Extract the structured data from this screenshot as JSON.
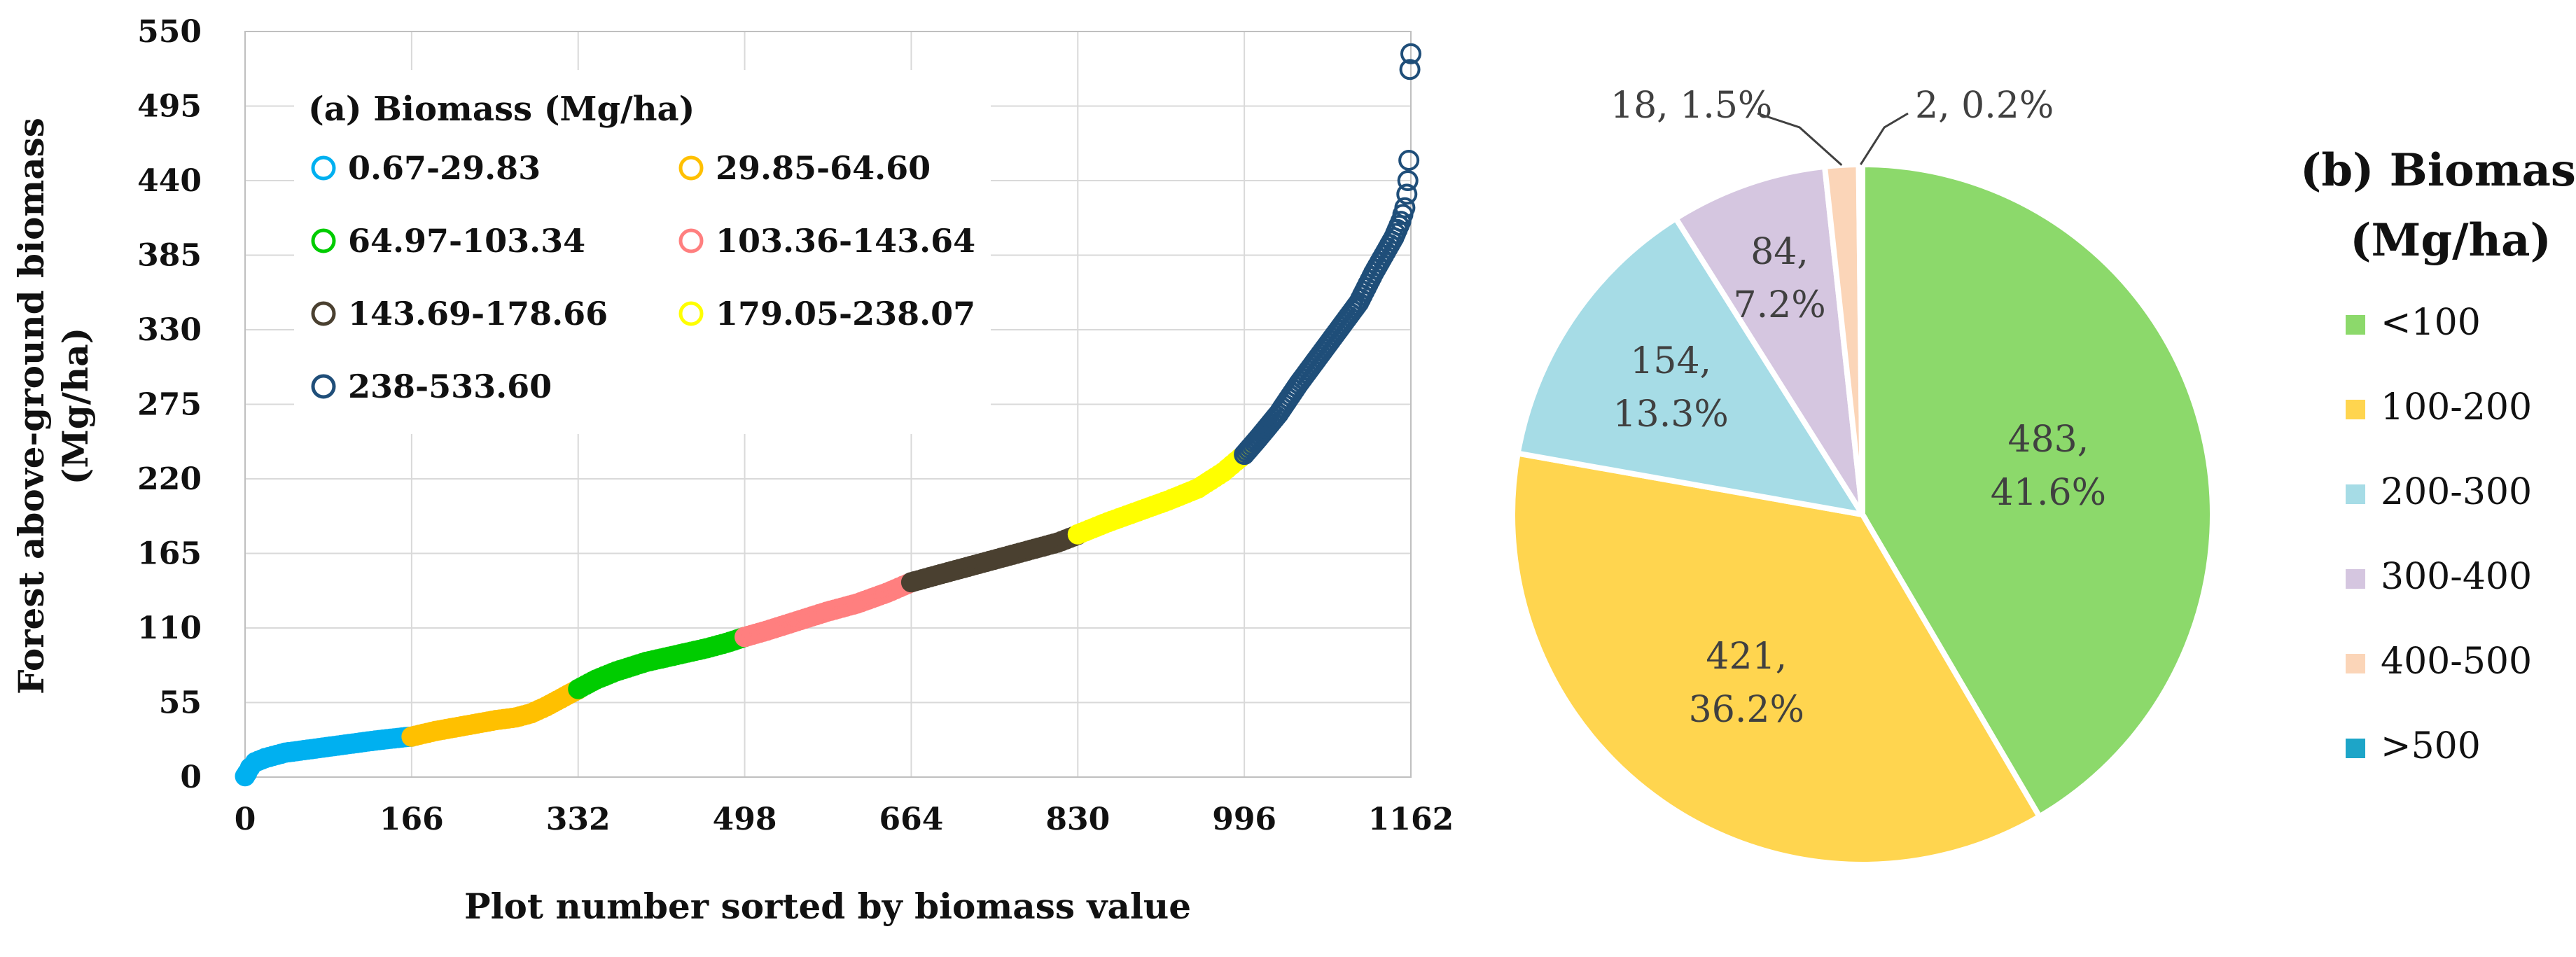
{
  "chart_data": [
    {
      "type": "scatter",
      "panel": "a",
      "title": "",
      "xlabel": "Plot number sorted by biomass value",
      "ylabel_line1": "Forest above-ground biomass",
      "ylabel_line2": "(Mg/ha)",
      "xlim": [
        0,
        1162
      ],
      "ylim": [
        0,
        550
      ],
      "x_ticks": [
        "0",
        "166",
        "332",
        "498",
        "664",
        "830",
        "996",
        "1162"
      ],
      "x_tick_values": [
        0,
        166,
        332,
        498,
        664,
        830,
        996,
        1162
      ],
      "y_ticks": [
        "0",
        "55",
        "110",
        "165",
        "220",
        "275",
        "330",
        "385",
        "440",
        "495",
        "550"
      ],
      "y_tick_values": [
        0,
        55,
        110,
        165,
        220,
        275,
        330,
        385,
        440,
        495,
        550
      ],
      "grid": true,
      "legend_title": "(a) Biomass (Mg/ha)",
      "legend_position": "top-left",
      "series": [
        {
          "name": "0.67-29.83",
          "color": "#00B0F0",
          "x": [
            0,
            2,
            5,
            10,
            20,
            40,
            70,
            100,
            130,
            160,
            166
          ],
          "y": [
            0.67,
            3,
            7,
            11,
            14,
            18,
            21,
            24,
            27,
            29.5,
            29.83
          ]
        },
        {
          "name": "29.85-64.60",
          "color": "#FFC000",
          "x": [
            166,
            190,
            220,
            250,
            270,
            285,
            300,
            315,
            325,
            332
          ],
          "y": [
            29.85,
            34,
            38,
            42,
            44,
            47,
            52,
            58,
            62,
            64.6
          ]
        },
        {
          "name": "64.97-103.34",
          "color": "#00CC00",
          "x": [
            332,
            350,
            370,
            400,
            430,
            460,
            480,
            498
          ],
          "y": [
            64.97,
            72,
            78,
            85,
            90,
            95,
            99,
            103.34
          ]
        },
        {
          "name": "103.36-143.64",
          "color": "#FF7F7F",
          "x": [
            498,
            520,
            550,
            580,
            610,
            640,
            664
          ],
          "y": [
            103.36,
            108,
            115,
            122,
            128,
            136,
            143.64
          ]
        },
        {
          "name": "143.69-178.66",
          "color": "#4A4030",
          "x": [
            664,
            690,
            720,
            750,
            780,
            810,
            830
          ],
          "y": [
            143.69,
            149,
            155,
            161,
            167,
            173,
            178.66
          ]
        },
        {
          "name": "179.05-238.07",
          "color": "#FFFF00",
          "x": [
            830,
            860,
            890,
            920,
            950,
            975,
            996
          ],
          "y": [
            179.05,
            188,
            196,
            204,
            213,
            225,
            238.07
          ]
        },
        {
          "name": "238-533.60",
          "color": "#1F4E79",
          "x": [
            996,
            1010,
            1030,
            1050,
            1070,
            1090,
            1110,
            1125,
            1135,
            1145,
            1152,
            1156,
            1158,
            1159,
            1160,
            1161,
            1162
          ],
          "y": [
            238,
            250,
            268,
            290,
            310,
            330,
            350,
            372,
            385,
            398,
            410,
            420,
            430,
            440,
            455,
            522,
            533.6
          ]
        }
      ]
    },
    {
      "type": "pie",
      "panel": "b",
      "title_line1": "(b) Biomass",
      "title_line2": "(Mg/ha)",
      "legend_position": "right",
      "categories": [
        "<100",
        "100-200",
        "200-300",
        "300-400",
        "400-500",
        ">500"
      ],
      "values": [
        483,
        421,
        154,
        84,
        18,
        2
      ],
      "percents": [
        "41.6%",
        "36.2%",
        "13.3%",
        "7.2%",
        "1.5%",
        "0.2%"
      ],
      "colors": [
        "#8CD96B",
        "#FFD54F",
        "#A6DCE6",
        "#D5C6E0",
        "#FBD5B8",
        "#1DA5C8"
      ],
      "labels": [
        {
          "line1": "483,",
          "line2": "41.6%"
        },
        {
          "line1": "421,",
          "line2": "36.2%"
        },
        {
          "line1": "154,",
          "line2": "13.3%"
        },
        {
          "line1": "84,",
          "line2": "7.2%"
        },
        {
          "line1": "18, 1.5%",
          "line2": ""
        },
        {
          "line1": "2, 0.2%",
          "line2": ""
        }
      ]
    }
  ]
}
